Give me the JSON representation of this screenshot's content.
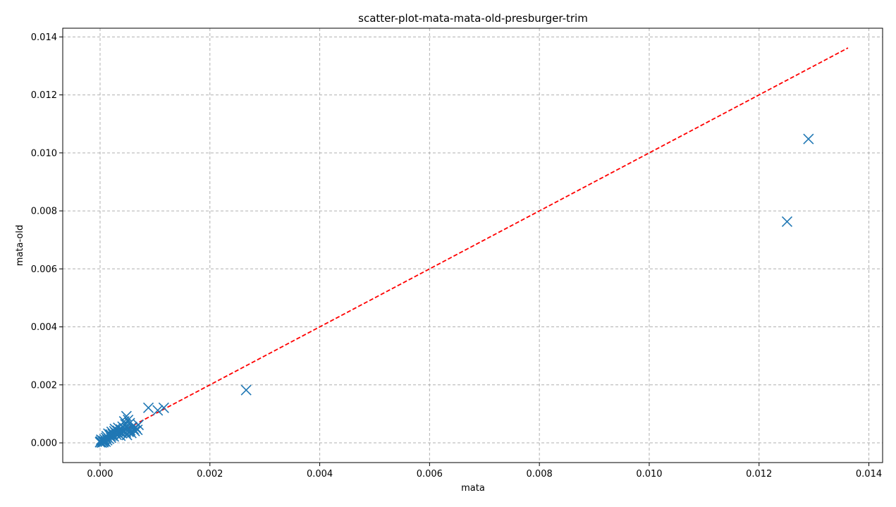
{
  "chart_data": {
    "type": "scatter",
    "title": "scatter-plot-mata-mata-old-presburger-trim",
    "xlabel": "mata",
    "ylabel": "mata-old",
    "xlim": [
      -0.00068,
      0.01425
    ],
    "ylim": [
      -0.00068,
      0.0143
    ],
    "x_ticks": [
      "0.000",
      "0.002",
      "0.004",
      "0.006",
      "0.008",
      "0.010",
      "0.012",
      "0.014"
    ],
    "y_ticks": [
      "0.000",
      "0.002",
      "0.004",
      "0.006",
      "0.008",
      "0.010",
      "0.012",
      "0.014"
    ],
    "grid": true,
    "marker": "x",
    "color": "#1f77b4",
    "reference_line": {
      "style": "dashed",
      "color": "#ff0000",
      "from": [
        0,
        0
      ],
      "to": [
        0.01362,
        0.01362
      ]
    },
    "points": [
      [
        0.0129,
        0.01048
      ],
      [
        0.01251,
        0.00763
      ],
      [
        0.00266,
        0.00182
      ],
      [
        0.00116,
        0.00121
      ],
      [
        0.00105,
        0.00112
      ],
      [
        0.00088,
        0.00121
      ],
      [
        0.00048,
        0.00092
      ],
      [
        0.00051,
        0.00079
      ],
      [
        0.00044,
        0.00074
      ],
      [
        0.0007,
        0.00062
      ],
      [
        0.00065,
        0.00053
      ],
      [
        0.00061,
        0.00048
      ],
      [
        0.00058,
        0.00055
      ],
      [
        0.00055,
        0.00043
      ],
      [
        0.00052,
        0.00038
      ],
      [
        0.0005,
        0.00049
      ],
      [
        0.00047,
        0.00036
      ],
      [
        0.00045,
        0.0005
      ],
      [
        0.00042,
        0.00041
      ],
      [
        0.0004,
        0.00033
      ],
      [
        0.00038,
        0.00046
      ],
      [
        0.00036,
        0.00037
      ],
      [
        0.00034,
        0.0003
      ],
      [
        0.00032,
        0.00042
      ],
      [
        0.0003,
        0.00028
      ],
      [
        0.00028,
        0.00035
      ],
      [
        0.00027,
        0.00048
      ],
      [
        0.00025,
        0.00022
      ],
      [
        0.00023,
        0.0003
      ],
      [
        0.00021,
        0.00038
      ],
      [
        0.0002,
        0.00018
      ],
      [
        0.00018,
        0.00025
      ],
      [
        0.00016,
        0.00014
      ],
      [
        0.00015,
        0.00032
      ],
      [
        0.00013,
        9e-05
      ],
      [
        0.00011,
        0.00017
      ],
      [
        0.0001,
        4e-05
      ],
      [
        8e-05,
        0.00012
      ],
      [
        6e-05,
        2e-05
      ],
      [
        4e-05,
        8e-05
      ],
      [
        3e-05,
        1e-05
      ],
      [
        1e-05,
        5e-05
      ],
      [
        0.0,
        2e-05
      ],
      [
        2e-05,
        0.00011
      ],
      [
        7e-05,
        6e-05
      ],
      [
        0.00033,
        0.00052
      ],
      [
        0.00041,
        0.00056
      ],
      [
        0.00057,
        0.00034
      ],
      [
        0.00063,
        0.00041
      ],
      [
        0.00068,
        0.00045
      ],
      [
        0.00049,
        0.00027
      ],
      [
        0.00037,
        0.00025
      ],
      [
        0.00026,
        0.0004
      ],
      [
        0.00019,
        0.00029
      ],
      [
        0.00012,
        0.00023
      ],
      [
        0.00046,
        0.00064
      ],
      [
        0.00054,
        0.00068
      ]
    ]
  }
}
